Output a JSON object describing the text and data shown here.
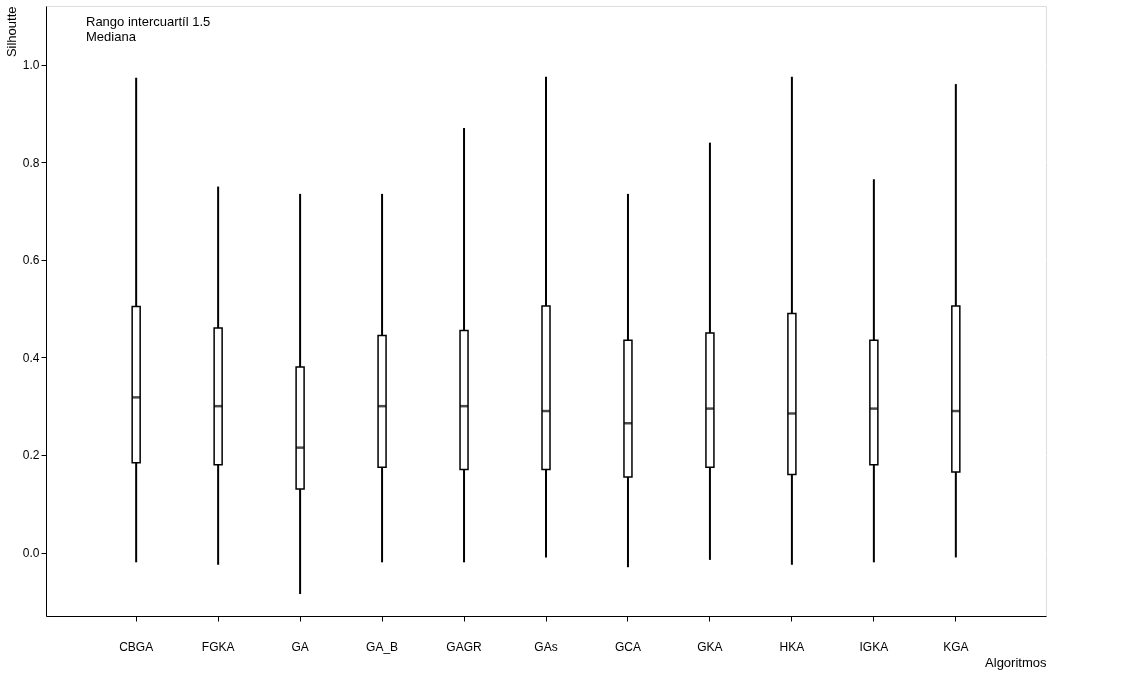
{
  "chart_data": {
    "type": "box",
    "xlabel": "Algoritmos",
    "ylabel": "Silhoutte",
    "categories": [
      "CBGA",
      "FGKA",
      "GA",
      "GA_B",
      "GAGR",
      "GAs",
      "GCA",
      "GKA",
      "HKA",
      "IGKA",
      "KGA"
    ],
    "boxes": [
      {
        "low": -0.02,
        "q1": 0.184,
        "median": 0.318,
        "q3": 0.504,
        "high": 0.973
      },
      {
        "low": -0.025,
        "q1": 0.18,
        "median": 0.3,
        "q3": 0.46,
        "high": 0.75
      },
      {
        "low": -0.085,
        "q1": 0.13,
        "median": 0.215,
        "q3": 0.38,
        "high": 0.735
      },
      {
        "low": -0.02,
        "q1": 0.175,
        "median": 0.3,
        "q3": 0.445,
        "high": 0.735
      },
      {
        "low": -0.02,
        "q1": 0.17,
        "median": 0.3,
        "q3": 0.455,
        "high": 0.87
      },
      {
        "low": -0.01,
        "q1": 0.17,
        "median": 0.29,
        "q3": 0.505,
        "high": 0.975
      },
      {
        "low": -0.03,
        "q1": 0.155,
        "median": 0.265,
        "q3": 0.435,
        "high": 0.735
      },
      {
        "low": -0.015,
        "q1": 0.175,
        "median": 0.295,
        "q3": 0.45,
        "high": 0.84
      },
      {
        "low": -0.025,
        "q1": 0.16,
        "median": 0.285,
        "q3": 0.49,
        "high": 0.975
      },
      {
        "low": -0.02,
        "q1": 0.18,
        "median": 0.295,
        "q3": 0.435,
        "high": 0.765
      },
      {
        "low": -0.01,
        "q1": 0.165,
        "median": 0.29,
        "q3": 0.505,
        "high": 0.96
      }
    ],
    "ylim": [
      -0.13,
      1.12
    ],
    "yticks": [
      {
        "value": 0,
        "label": "0.0"
      },
      0.2,
      0.4,
      0.6,
      0.8,
      {
        "value": 1,
        "label": "1.0"
      }
    ],
    "grid": "y",
    "annotations": [
      "Rango intercuartíl 1.5",
      "Mediana"
    ]
  }
}
